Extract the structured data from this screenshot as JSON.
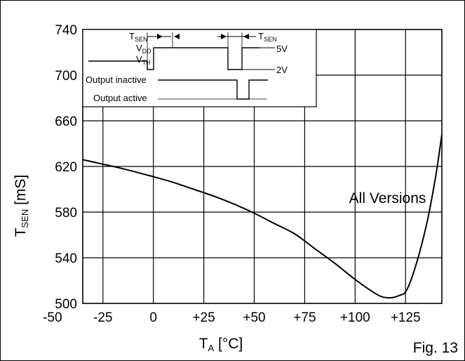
{
  "chart_data": {
    "type": "line",
    "title": "",
    "xlabel": {
      "main": "T",
      "sub": "A",
      "unit": " [°C]"
    },
    "ylabel": {
      "main": "T",
      "sub": "SEN",
      "unit": " [mS]"
    },
    "xlim": [
      -35,
      143
    ],
    "ylim": [
      500,
      740
    ],
    "x_ticks": [
      {
        "value": -50,
        "label": "-50"
      },
      {
        "value": -25,
        "label": "-25"
      },
      {
        "value": 0,
        "label": "0"
      },
      {
        "value": 25,
        "label": "+25"
      },
      {
        "value": 50,
        "label": "+50"
      },
      {
        "value": 75,
        "label": "+75"
      },
      {
        "value": 100,
        "label": "+100"
      },
      {
        "value": 125,
        "label": "+125"
      }
    ],
    "y_ticks": [
      {
        "value": 500,
        "label": "500"
      },
      {
        "value": 540,
        "label": "540"
      },
      {
        "value": 580,
        "label": "580"
      },
      {
        "value": 620,
        "label": "620"
      },
      {
        "value": 660,
        "label": "660"
      },
      {
        "value": 700,
        "label": "700"
      },
      {
        "value": 740,
        "label": "740"
      }
    ],
    "grid": true,
    "series": [
      {
        "name": "All Versions",
        "color": "#000000",
        "points": [
          [
            -35,
            626
          ],
          [
            -25,
            622
          ],
          [
            -15,
            618
          ],
          [
            0,
            611
          ],
          [
            10,
            606
          ],
          [
            20,
            600
          ],
          [
            30,
            594
          ],
          [
            40,
            587
          ],
          [
            50,
            579
          ],
          [
            60,
            570
          ],
          [
            70,
            561
          ],
          [
            80,
            548
          ],
          [
            90,
            535
          ],
          [
            100,
            521
          ],
          [
            108,
            511
          ],
          [
            113,
            506
          ],
          [
            118,
            505
          ],
          [
            122,
            507
          ],
          [
            125,
            510
          ],
          [
            128,
            522
          ],
          [
            132,
            545
          ],
          [
            136,
            574
          ],
          [
            140,
            612
          ],
          [
            143,
            648
          ]
        ]
      }
    ],
    "annotations": [
      {
        "text": "All Versions",
        "x": 97,
        "y": 588
      },
      {
        "text": "Fig. 13"
      }
    ]
  },
  "inset": {
    "labels": {
      "tsen_main": "T",
      "tsen_sub": "SEN",
      "vdd_main": "V",
      "vdd_sub": "DD",
      "vth_main": "V",
      "vth_sub": "TH",
      "five_v": "5V",
      "two_v": "2V",
      "output_inactive": "Output inactive",
      "output_active": "Output active"
    }
  },
  "figure_label": "Fig. 13"
}
